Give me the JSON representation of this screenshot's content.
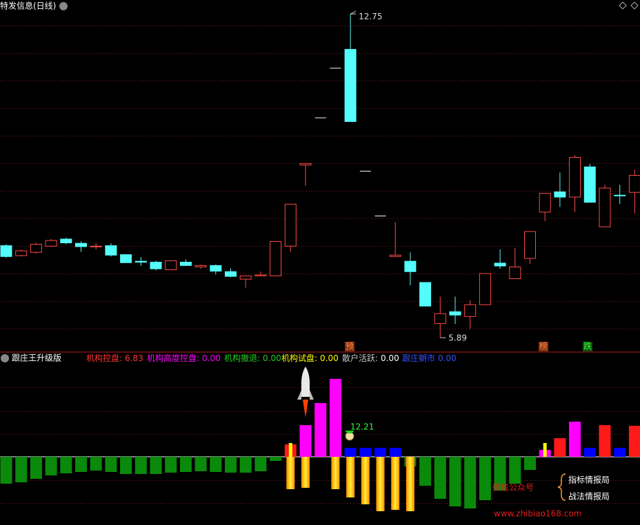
{
  "chart_data": [
    {
      "type": "candlestick",
      "title": "特发信息(日线)",
      "ylim": [
        5.6,
        12.9
      ],
      "open": [
        7.84,
        7.63,
        7.7,
        7.83,
        7.98,
        7.89,
        7.82,
        7.84,
        7.65,
        7.51,
        7.49,
        7.33,
        7.49,
        7.39,
        7.42,
        7.29,
        7.13,
        7.2,
        7.2,
        7.83,
        9.55,
        10.55,
        11.6,
        12.0,
        9.42,
        8.47,
        7.61,
        7.51,
        7.06,
        6.19,
        6.44,
        6.34,
        6.59,
        7.47,
        7.14,
        7.57,
        8.55,
        8.98,
        8.87,
        9.51,
        8.24,
        8.91,
        8.97
      ],
      "high": [
        7.87,
        7.76,
        7.9,
        7.98,
        8.01,
        7.93,
        7.9,
        7.89,
        7.65,
        7.6,
        7.52,
        7.52,
        7.55,
        7.44,
        7.44,
        7.36,
        7.2,
        7.29,
        7.93,
        8.72,
        9.59,
        10.55,
        11.6,
        12.75,
        9.42,
        8.47,
        8.34,
        7.7,
        7.06,
        6.76,
        6.76,
        6.68,
        7.25,
        7.76,
        7.79,
        8.14,
        8.95,
        9.39,
        9.76,
        9.57,
        9.13,
        9.13,
        9.45
      ],
      "low": [
        7.58,
        7.61,
        7.67,
        7.82,
        7.87,
        7.71,
        7.76,
        7.61,
        7.48,
        7.41,
        7.32,
        7.33,
        7.41,
        7.35,
        7.23,
        7.17,
        6.95,
        7.19,
        7.2,
        7.7,
        9.11,
        10.55,
        11.6,
        10.47,
        9.42,
        8.47,
        7.61,
        7.0,
        6.56,
        5.89,
        6.18,
        6.08,
        6.59,
        7.35,
        7.14,
        7.45,
        8.36,
        8.66,
        8.55,
        8.76,
        8.24,
        8.72,
        8.52
      ],
      "close": [
        7.61,
        7.73,
        7.87,
        7.95,
        7.9,
        7.82,
        7.83,
        7.64,
        7.48,
        7.49,
        7.35,
        7.52,
        7.42,
        7.42,
        7.3,
        7.19,
        7.2,
        7.22,
        7.93,
        8.72,
        9.58,
        10.55,
        11.6,
        10.47,
        9.42,
        8.47,
        7.64,
        7.29,
        6.56,
        6.4,
        6.37,
        6.59,
        7.25,
        7.41,
        7.39,
        8.14,
        8.95,
        8.87,
        9.71,
        8.76,
        9.06,
        8.9,
        9.33
      ],
      "up_color": "#ff4a4a",
      "down_color": "#54fcfc",
      "flat_color": "#ffffff",
      "high_label": 12.75,
      "low_label": 5.89,
      "signals": [
        "预",
        "榜",
        "跌"
      ]
    },
    {
      "type": "bar",
      "title": "跟庄王升级版",
      "ylim": [
        -9.9,
        15.1
      ],
      "series": [
        {
          "name": "机构控盘:",
          "legend_value": "6.83",
          "color": "#ff1a1a",
          "legend_color": "#ff3232",
          "values": [
            null,
            null,
            null,
            null,
            null,
            null,
            null,
            null,
            null,
            null,
            null,
            null,
            null,
            null,
            null,
            null,
            null,
            null,
            null,
            1.8,
            null,
            null,
            null,
            null,
            null,
            null,
            null,
            null,
            null,
            null,
            null,
            null,
            null,
            null,
            null,
            null,
            null,
            2.7,
            null,
            null,
            4.6,
            null,
            4.5
          ]
        },
        {
          "name": "机构高度控盘:",
          "legend_value": "0.00",
          "color": "#ff00ff",
          "legend_color": "#ff00ff",
          "values": [
            null,
            null,
            null,
            null,
            null,
            null,
            null,
            null,
            null,
            null,
            null,
            null,
            null,
            null,
            null,
            null,
            null,
            null,
            null,
            null,
            4.6,
            7.8,
            11.3,
            null,
            null,
            null,
            null,
            null,
            null,
            null,
            null,
            null,
            null,
            null,
            null,
            null,
            1.0,
            null,
            5.1,
            null,
            null,
            null,
            null
          ]
        },
        {
          "name": "机构撤退:",
          "legend_value": "0.00",
          "color": "#0a8a0a",
          "legend_color": "#22cc22",
          "values": [
            -3.9,
            -3.7,
            -3.2,
            -2.7,
            -2.4,
            -2.2,
            -2.0,
            -2.2,
            -2.5,
            -2.5,
            -2.5,
            -2.3,
            -2.2,
            -2.1,
            -2.2,
            -2.3,
            -2.3,
            -2.1,
            -0.6,
            null,
            null,
            null,
            null,
            null,
            null,
            null,
            null,
            -1.4,
            -4.2,
            -6.1,
            -7.2,
            -7.5,
            -6.3,
            -4.9,
            -3.9,
            -1.9,
            null,
            null,
            null,
            null,
            null,
            null,
            null
          ]
        },
        {
          "name": "机构试盘:",
          "legend_value": "0.00",
          "color": "#ffff00",
          "legend_color": "#ffff00",
          "values": [
            null,
            null,
            null,
            null,
            null,
            null,
            null,
            null,
            null,
            null,
            null,
            null,
            null,
            null,
            null,
            null,
            null,
            null,
            null,
            2.0,
            null,
            null,
            null,
            null,
            null,
            null,
            null,
            null,
            null,
            null,
            null,
            null,
            null,
            null,
            null,
            null,
            2.0,
            null,
            null,
            null,
            null,
            null,
            null
          ]
        },
        {
          "name": "散户活跃:",
          "legend_value": "0.00",
          "color": "#ffa500",
          "legend_color": "#c8c8c8",
          "values": [
            null,
            null,
            null,
            null,
            null,
            null,
            null,
            null,
            null,
            null,
            null,
            null,
            null,
            null,
            null,
            null,
            null,
            null,
            null,
            -4.7,
            -4.5,
            null,
            -4.7,
            -5.9,
            -6.9,
            -7.9,
            -7.7,
            -7.9,
            null,
            null,
            null,
            null,
            null,
            null,
            null,
            null,
            null,
            null,
            null,
            null,
            null,
            null,
            null
          ]
        },
        {
          "name": "跟庄朝市",
          "legend_value": "0.00",
          "color": "#0000ff",
          "legend_color": "#3050ff",
          "values": [
            null,
            null,
            null,
            null,
            null,
            null,
            null,
            null,
            null,
            null,
            null,
            null,
            null,
            null,
            null,
            null,
            null,
            null,
            null,
            null,
            null,
            null,
            null,
            1.3,
            1.3,
            1.3,
            1.3,
            null,
            null,
            null,
            null,
            null,
            null,
            null,
            null,
            null,
            null,
            null,
            null,
            1.3,
            null,
            1.3,
            null
          ]
        }
      ],
      "annotation": 12.21
    },
    {
      "type": "watermark",
      "wechat": "微信公众号",
      "names": [
        "指标情报局",
        "战法情报局"
      ],
      "url": "www.zhibiao168.com"
    }
  ]
}
